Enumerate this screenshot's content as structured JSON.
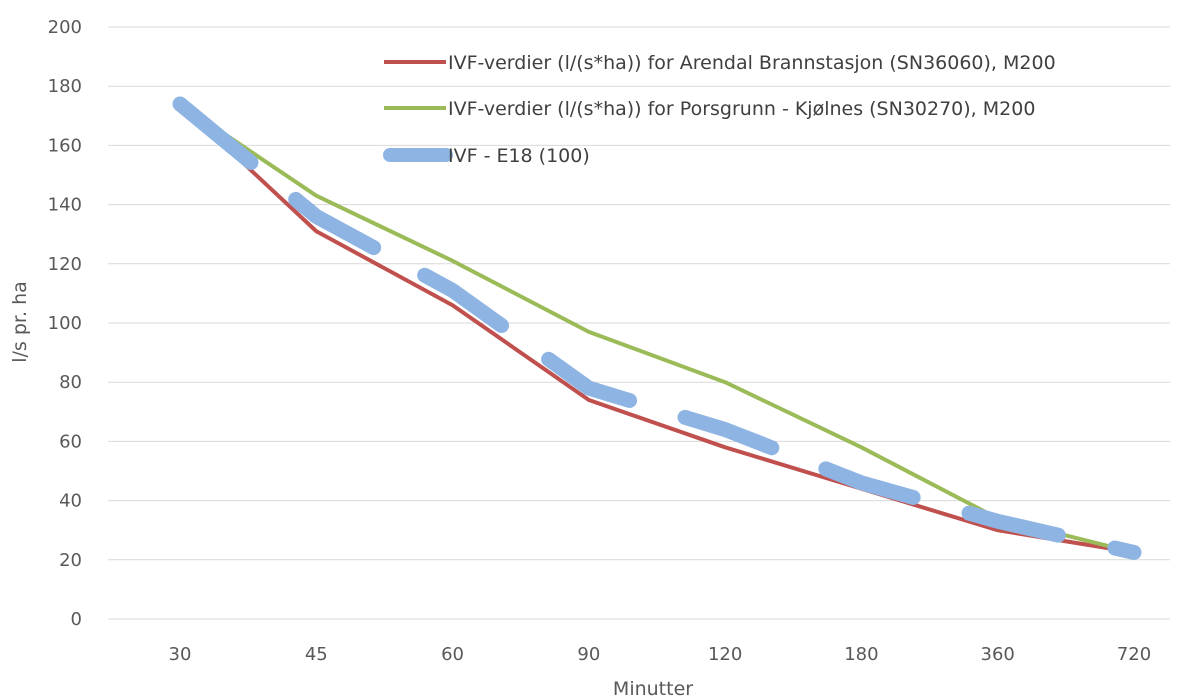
{
  "chart_data": {
    "type": "line",
    "title": "",
    "xlabel": "Minutter",
    "ylabel": "l/s pr. ha",
    "categories": [
      "30",
      "45",
      "60",
      "90",
      "120",
      "180",
      "360",
      "720"
    ],
    "ylim": [
      0,
      200
    ],
    "yticks": [
      "0",
      "20",
      "40",
      "60",
      "80",
      "100",
      "120",
      "140",
      "160",
      "180",
      "200"
    ],
    "grid": true,
    "legend": "top-right",
    "series": [
      {
        "name": "IVF-verdier (l/(s*ha)) for  Arendal Brannstasjon (SN36060), M200",
        "color": "#c0504d",
        "style": "solid",
        "values": [
          174,
          131,
          106,
          74,
          58,
          44,
          30,
          22.5
        ]
      },
      {
        "name": "IVF-verdier (l/(s*ha)) for  Porsgrunn - Kjølnes (SN30270),  M200",
        "color": "#9bbb59",
        "style": "solid",
        "values": [
          174,
          143,
          121,
          97,
          80,
          58,
          34,
          22.5
        ]
      },
      {
        "name": "IVF - E18 (100)",
        "color": "#8eb4e3",
        "style": "dashed-thick",
        "values": [
          174,
          136,
          111,
          78,
          64,
          46,
          33,
          22.5
        ]
      }
    ]
  }
}
